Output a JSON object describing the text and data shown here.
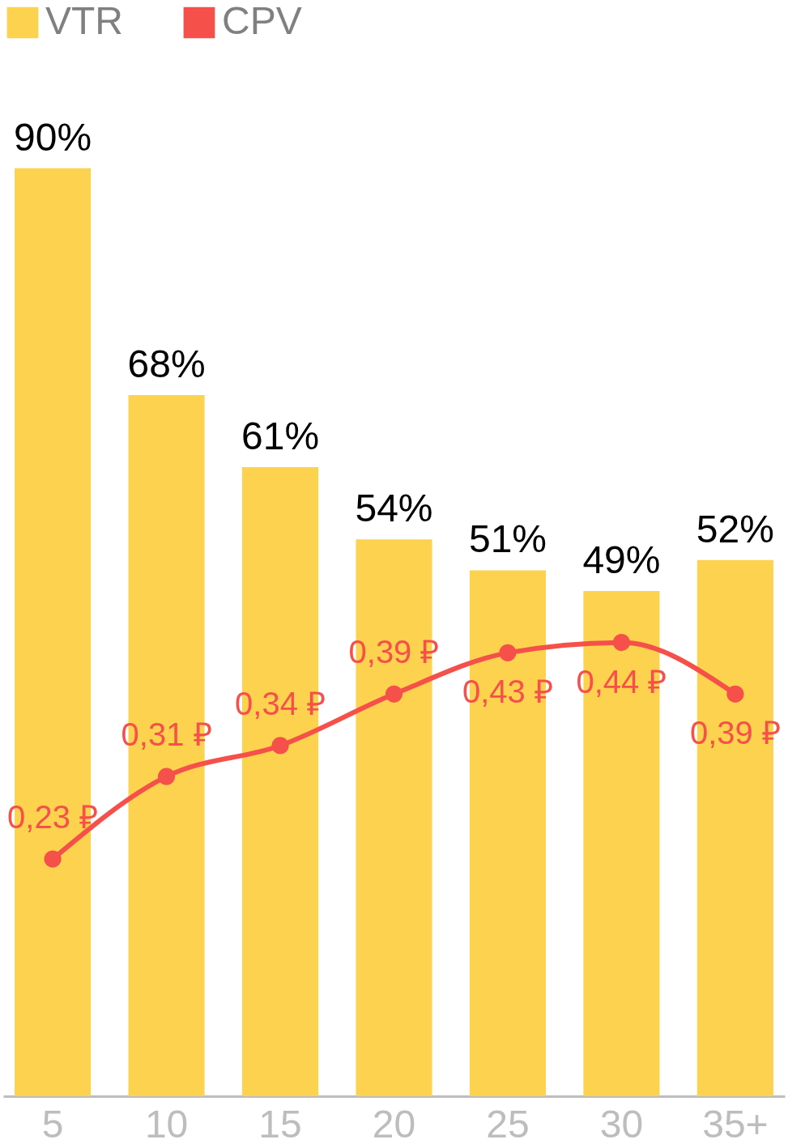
{
  "chart_data": {
    "type": "bar",
    "categories": [
      "5",
      "10",
      "15",
      "20",
      "25",
      "30",
      "35+"
    ],
    "series": [
      {
        "name": "VTR",
        "color": "#fdd24f",
        "values": [
          90,
          68,
          61,
          54,
          51,
          49,
          52
        ],
        "value_labels": [
          "90%",
          "68%",
          "61%",
          "54%",
          "51%",
          "49%",
          "52%"
        ]
      },
      {
        "name": "CPV",
        "type": "line",
        "axis": "y2",
        "color": "#f5504a",
        "values": [
          0.23,
          0.31,
          0.34,
          0.39,
          0.43,
          0.44,
          0.39
        ],
        "value_labels": [
          "0,23 ₽",
          "0,31 ₽",
          "0,34 ₽",
          "0,39 ₽",
          "0,43 ₽",
          "0,44 ₽",
          "0,39 ₽"
        ]
      }
    ],
    "ylim": [
      0,
      106
    ],
    "y2lim": [
      0,
      1.06
    ],
    "tick_labels": "x",
    "legend": "top left",
    "grid": false,
    "marker": "circle",
    "line_style": "solid"
  }
}
